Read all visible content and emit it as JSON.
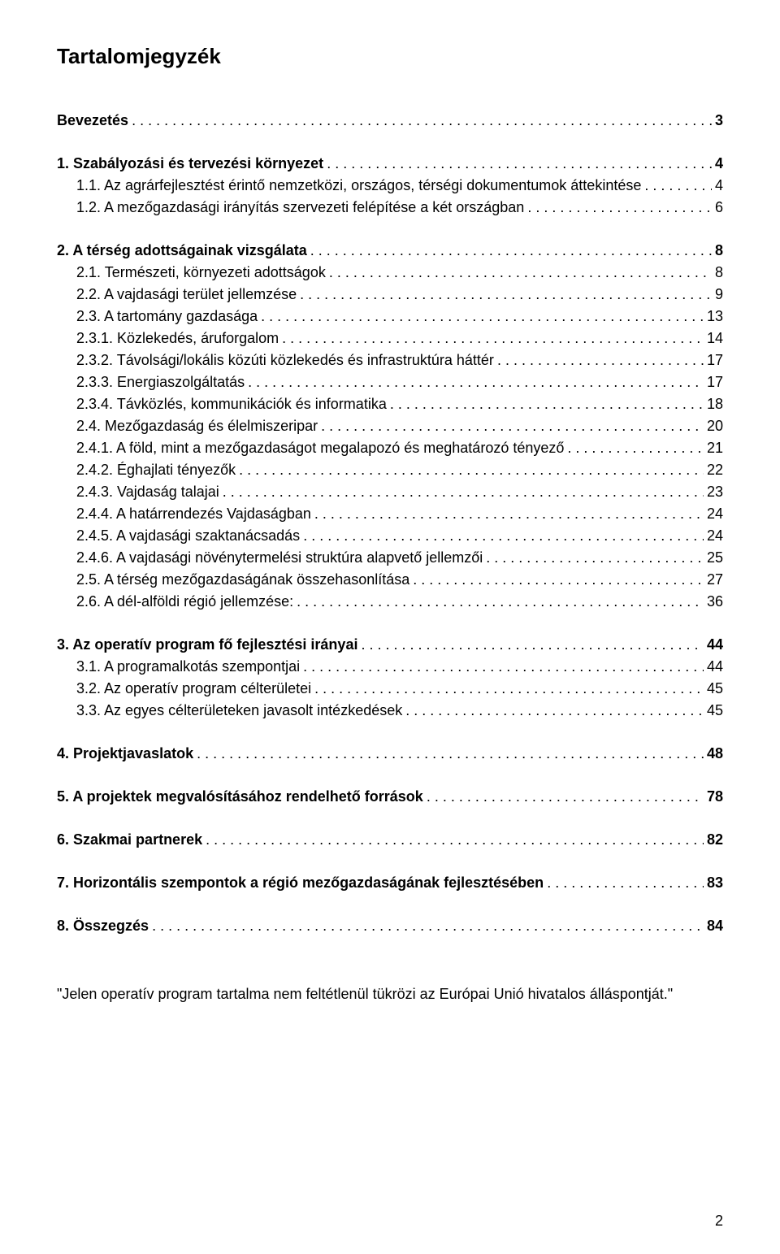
{
  "title": "Tartalomjegyzék",
  "page_number": "2",
  "footnote": "\"Jelen operatív program tartalma nem feltétlenül tükrözi az Európai Unió hivatalos álláspontját.\"",
  "colors": {
    "text": "#000000",
    "background": "#ffffff"
  },
  "typography": {
    "title_fontsize": 26,
    "body_fontsize": 18,
    "font_family": "Arial"
  },
  "toc": [
    {
      "entries": [
        {
          "label": "Bevezetés",
          "page": "3",
          "bold": true,
          "indent": 0
        }
      ]
    },
    {
      "entries": [
        {
          "label": "1. Szabályozási és tervezési környezet",
          "page": "4",
          "bold": true,
          "indent": 0
        },
        {
          "label": "1.1. Az agrárfejlesztést érintő nemzetközi, országos, térségi dokumentumok áttekintése",
          "page": "4",
          "bold": false,
          "indent": 1
        },
        {
          "label": "1.2. A mezőgazdasági irányítás szervezeti felépítése a két országban",
          "page": "6",
          "bold": false,
          "indent": 1
        }
      ]
    },
    {
      "entries": [
        {
          "label": "2. A térség adottságainak vizsgálata",
          "page": "8",
          "bold": true,
          "indent": 0
        },
        {
          "label": "2.1. Természeti, környezeti adottságok",
          "page": "8",
          "bold": false,
          "indent": 1
        },
        {
          "label": "2.2. A vajdasági terület jellemzése",
          "page": "9",
          "bold": false,
          "indent": 1
        },
        {
          "label": "2.3. A tartomány gazdasága",
          "page": "13",
          "bold": false,
          "indent": 1
        },
        {
          "label": "2.3.1. Közlekedés, áruforgalom",
          "page": "14",
          "bold": false,
          "indent": 1
        },
        {
          "label": "2.3.2. Távolsági/lokális közúti közlekedés és infrastruktúra háttér",
          "page": "17",
          "bold": false,
          "indent": 1
        },
        {
          "label": "2.3.3. Energiaszolgáltatás",
          "page": "17",
          "bold": false,
          "indent": 1
        },
        {
          "label": "2.3.4. Távközlés, kommunikációk és informatika",
          "page": "18",
          "bold": false,
          "indent": 1
        },
        {
          "label": "2.4. Mezőgazdaság és élelmiszeripar",
          "page": "20",
          "bold": false,
          "indent": 1
        },
        {
          "label": "2.4.1. A föld, mint a mezőgazdaságot megalapozó és meghatározó tényező",
          "page": "21",
          "bold": false,
          "indent": 1
        },
        {
          "label": "2.4.2. Éghajlati tényezők",
          "page": "22",
          "bold": false,
          "indent": 1
        },
        {
          "label": "2.4.3. Vajdaság talajai",
          "page": "23",
          "bold": false,
          "indent": 1
        },
        {
          "label": "2.4.4. A határrendezés Vajdaságban",
          "page": "24",
          "bold": false,
          "indent": 1
        },
        {
          "label": "2.4.5. A vajdasági szaktanácsadás",
          "page": "24",
          "bold": false,
          "indent": 1
        },
        {
          "label": "2.4.6. A vajdasági növénytermelési struktúra alapvető jellemzői",
          "page": "25",
          "bold": false,
          "indent": 1
        },
        {
          "label": "2.5. A térség mezőgazdaságának összehasonlítása",
          "page": "27",
          "bold": false,
          "indent": 1
        },
        {
          "label": "2.6. A dél-alföldi régió jellemzése:",
          "page": "36",
          "bold": false,
          "indent": 1
        }
      ]
    },
    {
      "entries": [
        {
          "label": "3. Az operatív program fő fejlesztési irányai",
          "page": "44",
          "bold": true,
          "indent": 0
        },
        {
          "label": "3.1. A programalkotás szempontjai",
          "page": "44",
          "bold": false,
          "indent": 1
        },
        {
          "label": "3.2. Az operatív program célterületei",
          "page": "45",
          "bold": false,
          "indent": 1
        },
        {
          "label": "3.3. Az egyes célterületeken javasolt intézkedések",
          "page": "45",
          "bold": false,
          "indent": 1
        }
      ]
    },
    {
      "entries": [
        {
          "label": "4. Projektjavaslatok",
          "page": "48",
          "bold": true,
          "indent": 0
        }
      ]
    },
    {
      "entries": [
        {
          "label": "5. A projektek megvalósításához rendelhető források",
          "page": "78",
          "bold": true,
          "indent": 0
        }
      ]
    },
    {
      "entries": [
        {
          "label": "6. Szakmai partnerek",
          "page": "82",
          "bold": true,
          "indent": 0
        }
      ]
    },
    {
      "entries": [
        {
          "label": "7. Horizontális szempontok a régió mezőgazdaságának fejlesztésében",
          "page": "83",
          "bold": true,
          "indent": 0
        }
      ]
    },
    {
      "entries": [
        {
          "label": "8. Összegzés",
          "page": "84",
          "bold": true,
          "indent": 0
        }
      ]
    }
  ]
}
